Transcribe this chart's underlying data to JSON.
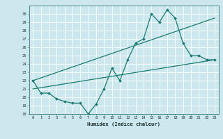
{
  "line1_x": [
    0,
    1,
    2,
    3,
    4,
    5,
    6,
    7,
    8,
    9,
    10,
    11,
    12,
    13,
    14,
    15,
    16,
    17,
    18,
    19,
    20,
    21,
    22,
    23
  ],
  "line1_y": [
    22,
    20.5,
    20.5,
    19.8,
    19.5,
    19.3,
    19.3,
    18,
    19.2,
    21,
    23.5,
    22,
    24.5,
    26.5,
    27,
    30,
    29,
    30.5,
    29.5,
    26.5,
    25,
    25,
    24.5,
    24.5
  ],
  "line2_x": [
    0,
    23
  ],
  "line2_y": [
    22.0,
    29.5
  ],
  "line3_x": [
    0,
    23
  ],
  "line3_y": [
    21.0,
    24.5
  ],
  "line_color": "#1a7a6e",
  "bg_color": "#cce8ee",
  "grid_color": "#ffffff",
  "xlabel": "Humidex (Indice chaleur)",
  "ylim": [
    18,
    31
  ],
  "xlim": [
    -0.5,
    23.5
  ],
  "yticks": [
    18,
    19,
    20,
    21,
    22,
    23,
    24,
    25,
    26,
    27,
    28,
    29,
    30
  ],
  "xticks": [
    0,
    1,
    2,
    3,
    4,
    5,
    6,
    7,
    8,
    9,
    10,
    11,
    12,
    13,
    14,
    15,
    16,
    17,
    18,
    19,
    20,
    21,
    22,
    23
  ]
}
